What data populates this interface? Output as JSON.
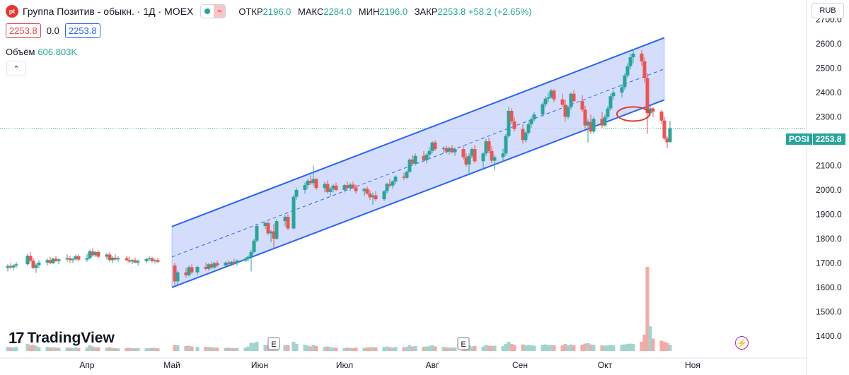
{
  "header": {
    "logo_text": "pt",
    "title": "Группа Позитив - обыкн. · 1Д · MOEX",
    "pill_icon": "≈",
    "ohlc": [
      {
        "key": "ОТКР",
        "value": "2196.0"
      },
      {
        "key": "МАКС",
        "value": "2284.0"
      },
      {
        "key": "МИН",
        "value": "2196.0"
      },
      {
        "key": "ЗАКР",
        "value": "2253.8"
      }
    ],
    "change": "+58.2 (+2.65%)",
    "bid": "2253.8",
    "spread": "0.0",
    "ask": "2253.8",
    "volume_label": "Объём",
    "volume_value": "606.803K",
    "collapse_icon": "chevron-up-icon",
    "currency": "RUB"
  },
  "brand": {
    "mark": "17",
    "name": "TradingView"
  },
  "last_price": {
    "symbol": "POSI",
    "value": "2253.8"
  },
  "colors": {
    "up": "#26a69a",
    "down": "#ef5350",
    "channel_line": "#2962ff",
    "channel_fill": "#c5d3fb",
    "volume_up": "#9ed6cf",
    "volume_down": "#f5a9a7",
    "annotation": "#e53935"
  },
  "chart_data": {
    "type": "candlestick",
    "y_ticks": [
      "2700.0",
      "2600.0",
      "2500.0",
      "2400.0",
      "2300.0",
      "2200.0",
      "2100.0",
      "2000.0",
      "1900.0",
      "1800.0",
      "1700.0",
      "1600.0",
      "1500.0",
      "1400.0"
    ],
    "y_range": [
      1310,
      2780
    ],
    "x_ticks": [
      {
        "label": "Апр",
        "date": "2024-04-01"
      },
      {
        "label": "Май",
        "date": "2024-05-01"
      },
      {
        "label": "Июн",
        "date": "2024-06-01"
      },
      {
        "label": "Июл",
        "date": "2024-07-01"
      },
      {
        "label": "Авг",
        "date": "2024-08-01"
      },
      {
        "label": "Сен",
        "date": "2024-09-01"
      },
      {
        "label": "Окт",
        "date": "2024-10-01"
      },
      {
        "label": "Ноя",
        "date": "2024-11-01"
      }
    ],
    "last_close": 2253.8,
    "channel": {
      "start": "2024-05-01",
      "end": "2024-10-22",
      "lower": [
        1600,
        2370
      ],
      "upper": [
        1850,
        2625
      ],
      "middle": [
        1725,
        2497
      ]
    },
    "events": [
      {
        "label": "E",
        "date": "2024-06-06"
      },
      {
        "label": "E",
        "date": "2024-08-12"
      }
    ],
    "annotation_circle": {
      "date": "2024-10-11",
      "value": 2312
    },
    "candles": [
      [
        "2024-03-04",
        1680,
        1695,
        1665,
        1688,
        20
      ],
      [
        "2024-03-05",
        1688,
        1700,
        1675,
        1682,
        18
      ],
      [
        "2024-03-06",
        1682,
        1695,
        1670,
        1690,
        17
      ],
      [
        "2024-03-07",
        1690,
        1705,
        1680,
        1695,
        20
      ],
      [
        "2024-03-11",
        1695,
        1740,
        1690,
        1730,
        35
      ],
      [
        "2024-03-12",
        1730,
        1745,
        1700,
        1710,
        28
      ],
      [
        "2024-03-13",
        1710,
        1720,
        1675,
        1680,
        30
      ],
      [
        "2024-03-14",
        1680,
        1700,
        1660,
        1692,
        25
      ],
      [
        "2024-03-15",
        1692,
        1712,
        1680,
        1702,
        18
      ],
      [
        "2024-03-18",
        1702,
        1720,
        1690,
        1712,
        20
      ],
      [
        "2024-03-19",
        1712,
        1725,
        1695,
        1700,
        17
      ],
      [
        "2024-03-20",
        1700,
        1722,
        1695,
        1718,
        18
      ],
      [
        "2024-03-21",
        1718,
        1730,
        1705,
        1708,
        16
      ],
      [
        "2024-03-22",
        1708,
        1720,
        1695,
        1715,
        15
      ],
      [
        "2024-03-25",
        1715,
        1735,
        1705,
        1720,
        17
      ],
      [
        "2024-03-26",
        1720,
        1730,
        1700,
        1712,
        16
      ],
      [
        "2024-03-27",
        1712,
        1722,
        1700,
        1716,
        14
      ],
      [
        "2024-03-28",
        1716,
        1735,
        1710,
        1728,
        18
      ],
      [
        "2024-03-29",
        1728,
        1735,
        1708,
        1714,
        15
      ],
      [
        "2024-04-01",
        1714,
        1738,
        1705,
        1720,
        17
      ],
      [
        "2024-04-02",
        1720,
        1755,
        1715,
        1748,
        28
      ],
      [
        "2024-04-03",
        1748,
        1760,
        1725,
        1732,
        22
      ],
      [
        "2024-04-04",
        1732,
        1750,
        1725,
        1745,
        18
      ],
      [
        "2024-04-05",
        1745,
        1752,
        1720,
        1726,
        17
      ],
      [
        "2024-04-08",
        1726,
        1742,
        1715,
        1735,
        16
      ],
      [
        "2024-04-09",
        1735,
        1745,
        1705,
        1712,
        18
      ],
      [
        "2024-04-10",
        1712,
        1728,
        1700,
        1722,
        15
      ],
      [
        "2024-04-11",
        1722,
        1735,
        1710,
        1715,
        14
      ],
      [
        "2024-04-12",
        1715,
        1728,
        1705,
        1720,
        13
      ],
      [
        "2024-04-15",
        1720,
        1730,
        1708,
        1712,
        14
      ],
      [
        "2024-04-16",
        1712,
        1725,
        1700,
        1706,
        15
      ],
      [
        "2024-04-17",
        1706,
        1718,
        1695,
        1712,
        14
      ],
      [
        "2024-04-18",
        1712,
        1722,
        1700,
        1702,
        13
      ],
      [
        "2024-04-19",
        1702,
        1715,
        1690,
        1708,
        14
      ],
      [
        "2024-04-22",
        1708,
        1722,
        1700,
        1716,
        13
      ],
      [
        "2024-04-23",
        1716,
        1728,
        1708,
        1720,
        14
      ],
      [
        "2024-04-24",
        1720,
        1725,
        1702,
        1708,
        15
      ],
      [
        "2024-04-25",
        1708,
        1718,
        1698,
        1712,
        14
      ],
      [
        "2024-04-26",
        1712,
        1722,
        1700,
        1705,
        13
      ],
      [
        "2024-05-02",
        1690,
        1700,
        1612,
        1625,
        30
      ],
      [
        "2024-05-03",
        1625,
        1670,
        1610,
        1662,
        28
      ],
      [
        "2024-05-06",
        1662,
        1680,
        1640,
        1650,
        24
      ],
      [
        "2024-05-07",
        1650,
        1690,
        1645,
        1683,
        26
      ],
      [
        "2024-05-08",
        1683,
        1695,
        1655,
        1662,
        22
      ],
      [
        "2024-05-10",
        1662,
        1690,
        1650,
        1684,
        20
      ],
      [
        "2024-05-13",
        1684,
        1702,
        1670,
        1676,
        21
      ],
      [
        "2024-05-14",
        1676,
        1700,
        1668,
        1695,
        20
      ],
      [
        "2024-05-15",
        1695,
        1705,
        1675,
        1682,
        18
      ],
      [
        "2024-05-16",
        1682,
        1705,
        1675,
        1700,
        17
      ],
      [
        "2024-05-17",
        1700,
        1710,
        1685,
        1690,
        16
      ],
      [
        "2024-05-20",
        1690,
        1708,
        1682,
        1702,
        15
      ],
      [
        "2024-05-21",
        1702,
        1712,
        1690,
        1695,
        16
      ],
      [
        "2024-05-22",
        1695,
        1710,
        1688,
        1705,
        15
      ],
      [
        "2024-05-23",
        1705,
        1718,
        1695,
        1700,
        14
      ],
      [
        "2024-05-24",
        1700,
        1715,
        1690,
        1710,
        15
      ],
      [
        "2024-05-27",
        1710,
        1725,
        1705,
        1718,
        16
      ],
      [
        "2024-05-28",
        1718,
        1732,
        1708,
        1726,
        22
      ],
      [
        "2024-05-29",
        1726,
        1755,
        1665,
        1745,
        40
      ],
      [
        "2024-05-30",
        1745,
        1800,
        1740,
        1792,
        38
      ],
      [
        "2024-05-31",
        1792,
        1860,
        1785,
        1852,
        45
      ],
      [
        "2024-06-03",
        1852,
        1870,
        1840,
        1865,
        30
      ],
      [
        "2024-06-04",
        1865,
        1870,
        1815,
        1822,
        28
      ],
      [
        "2024-06-05",
        1822,
        1835,
        1785,
        1830,
        32
      ],
      [
        "2024-06-06",
        1830,
        1860,
        1760,
        1800,
        42
      ],
      [
        "2024-06-07",
        1800,
        1880,
        1795,
        1872,
        38
      ],
      [
        "2024-06-10",
        1872,
        1898,
        1850,
        1890,
        30
      ],
      [
        "2024-06-11",
        1890,
        1900,
        1835,
        1842,
        28
      ],
      [
        "2024-06-13",
        1842,
        1980,
        1838,
        1972,
        45
      ],
      [
        "2024-06-14",
        1972,
        2010,
        1960,
        2000,
        35
      ],
      [
        "2024-06-17",
        2000,
        2030,
        1985,
        2020,
        30
      ],
      [
        "2024-06-18",
        2020,
        2045,
        2005,
        2038,
        26
      ],
      [
        "2024-06-19",
        2038,
        2060,
        2020,
        2028,
        22
      ],
      [
        "2024-06-20",
        2028,
        2100,
        2015,
        2045,
        30
      ],
      [
        "2024-06-21",
        2045,
        2050,
        2000,
        2008,
        24
      ],
      [
        "2024-06-24",
        2008,
        2035,
        1990,
        2025,
        20
      ],
      [
        "2024-06-25",
        2025,
        2040,
        1985,
        1992,
        22
      ],
      [
        "2024-06-26",
        1992,
        2012,
        1975,
        2005,
        18
      ],
      [
        "2024-06-27",
        2005,
        2025,
        1990,
        2018,
        17
      ],
      [
        "2024-06-28",
        2018,
        2030,
        1995,
        2000,
        16
      ],
      [
        "2024-07-01",
        2000,
        2025,
        1990,
        2020,
        15
      ],
      [
        "2024-07-02",
        2020,
        2035,
        2000,
        2008,
        16
      ],
      [
        "2024-07-03",
        2008,
        2030,
        1995,
        2022,
        15
      ],
      [
        "2024-07-04",
        2022,
        2035,
        2005,
        2010,
        14
      ],
      [
        "2024-07-05",
        2010,
        2022,
        1985,
        1995,
        16
      ],
      [
        "2024-07-08",
        1995,
        2010,
        1975,
        2005,
        15
      ],
      [
        "2024-07-09",
        2005,
        2015,
        1980,
        1985,
        17
      ],
      [
        "2024-07-10",
        1985,
        2000,
        1960,
        1970,
        18
      ],
      [
        "2024-07-11",
        1970,
        1990,
        1940,
        1978,
        19
      ],
      [
        "2024-07-12",
        1978,
        1995,
        1955,
        1962,
        17
      ],
      [
        "2024-07-15",
        1962,
        2000,
        1955,
        1995,
        20
      ],
      [
        "2024-07-16",
        1995,
        2030,
        1985,
        2025,
        22
      ],
      [
        "2024-07-17",
        2025,
        2045,
        2010,
        2018,
        18
      ],
      [
        "2024-07-18",
        2018,
        2040,
        2005,
        2035,
        17
      ],
      [
        "2024-07-19",
        2035,
        2060,
        2025,
        2055,
        20
      ],
      [
        "2024-07-22",
        2055,
        2070,
        2040,
        2050,
        18
      ],
      [
        "2024-07-23",
        2050,
        2080,
        2045,
        2075,
        20
      ],
      [
        "2024-07-24",
        2075,
        2130,
        2070,
        2125,
        28
      ],
      [
        "2024-07-25",
        2125,
        2145,
        2100,
        2108,
        22
      ],
      [
        "2024-07-26",
        2108,
        2150,
        2100,
        2140,
        24
      ],
      [
        "2024-07-29",
        2140,
        2160,
        2115,
        2122,
        20
      ],
      [
        "2024-07-30",
        2122,
        2150,
        2110,
        2145,
        22
      ],
      [
        "2024-07-31",
        2145,
        2175,
        2130,
        2160,
        24
      ],
      [
        "2024-08-01",
        2160,
        2200,
        2150,
        2195,
        28
      ],
      [
        "2024-08-02",
        2195,
        2205,
        2160,
        2168,
        22
      ],
      [
        "2024-08-05",
        2168,
        2180,
        2150,
        2172,
        20
      ],
      [
        "2024-08-06",
        2172,
        2182,
        2150,
        2158,
        18
      ],
      [
        "2024-08-07",
        2158,
        2178,
        2145,
        2172,
        17
      ],
      [
        "2024-08-08",
        2172,
        2185,
        2150,
        2155,
        16
      ],
      [
        "2024-08-09",
        2155,
        2175,
        2140,
        2168,
        17
      ],
      [
        "2024-08-12",
        2168,
        2180,
        2125,
        2135,
        24
      ],
      [
        "2024-08-13",
        2135,
        2150,
        2095,
        2105,
        26
      ],
      [
        "2024-08-14",
        2105,
        2150,
        2060,
        2140,
        28
      ],
      [
        "2024-08-15",
        2140,
        2175,
        2130,
        2168,
        22
      ],
      [
        "2024-08-16",
        2168,
        2185,
        2110,
        2118,
        24
      ],
      [
        "2024-08-19",
        2118,
        2155,
        2090,
        2150,
        22
      ],
      [
        "2024-08-20",
        2150,
        2210,
        2140,
        2200,
        30
      ],
      [
        "2024-08-21",
        2200,
        2215,
        2150,
        2160,
        26
      ],
      [
        "2024-08-22",
        2160,
        2180,
        2110,
        2120,
        25
      ],
      [
        "2024-08-23",
        2120,
        2145,
        2080,
        2135,
        26
      ],
      [
        "2024-08-26",
        2135,
        2170,
        2115,
        2150,
        24
      ],
      [
        "2024-08-27",
        2150,
        2230,
        2140,
        2222,
        35
      ],
      [
        "2024-08-28",
        2222,
        2340,
        2215,
        2325,
        45
      ],
      [
        "2024-08-29",
        2325,
        2335,
        2270,
        2282,
        34
      ],
      [
        "2024-08-30",
        2282,
        2300,
        2240,
        2250,
        30
      ],
      [
        "2024-09-02",
        2250,
        2270,
        2190,
        2205,
        32
      ],
      [
        "2024-09-03",
        2205,
        2240,
        2195,
        2235,
        28
      ],
      [
        "2024-09-04",
        2235,
        2280,
        2225,
        2270,
        30
      ],
      [
        "2024-09-05",
        2270,
        2300,
        2255,
        2290,
        28
      ],
      [
        "2024-09-06",
        2290,
        2320,
        2280,
        2310,
        26
      ],
      [
        "2024-09-09",
        2310,
        2360,
        2300,
        2352,
        30
      ],
      [
        "2024-09-10",
        2352,
        2385,
        2340,
        2375,
        32
      ],
      [
        "2024-09-11",
        2375,
        2400,
        2360,
        2380,
        28
      ],
      [
        "2024-09-12",
        2380,
        2415,
        2375,
        2408,
        30
      ],
      [
        "2024-09-13",
        2408,
        2415,
        2360,
        2372,
        28
      ],
      [
        "2024-09-16",
        2372,
        2395,
        2340,
        2350,
        27
      ],
      [
        "2024-09-17",
        2350,
        2370,
        2280,
        2300,
        34
      ],
      [
        "2024-09-18",
        2300,
        2345,
        2290,
        2340,
        28
      ],
      [
        "2024-09-19",
        2340,
        2400,
        2330,
        2395,
        32
      ],
      [
        "2024-09-20",
        2395,
        2410,
        2360,
        2365,
        28
      ],
      [
        "2024-09-23",
        2365,
        2390,
        2320,
        2330,
        30
      ],
      [
        "2024-09-24",
        2330,
        2345,
        2250,
        2265,
        36
      ],
      [
        "2024-09-25",
        2265,
        2290,
        2195,
        2280,
        38
      ],
      [
        "2024-09-26",
        2280,
        2310,
        2230,
        2240,
        32
      ],
      [
        "2024-09-27",
        2240,
        2300,
        2230,
        2292,
        30
      ],
      [
        "2024-09-30",
        2292,
        2320,
        2255,
        2265,
        28
      ],
      [
        "2024-10-01",
        2265,
        2310,
        2260,
        2300,
        26
      ],
      [
        "2024-10-02",
        2300,
        2345,
        2290,
        2335,
        28
      ],
      [
        "2024-10-03",
        2335,
        2395,
        2325,
        2385,
        30
      ],
      [
        "2024-10-04",
        2385,
        2410,
        2370,
        2400,
        28
      ],
      [
        "2024-10-07",
        2400,
        2435,
        2380,
        2422,
        30
      ],
      [
        "2024-10-08",
        2422,
        2480,
        2410,
        2470,
        32
      ],
      [
        "2024-10-09",
        2470,
        2520,
        2460,
        2508,
        34
      ],
      [
        "2024-10-10",
        2508,
        2560,
        2495,
        2545,
        36
      ],
      [
        "2024-10-11",
        2545,
        2580,
        2520,
        2560,
        34
      ],
      [
        "2024-10-14",
        2560,
        2575,
        2510,
        2528,
        45
      ],
      [
        "2024-10-15",
        2528,
        2545,
        2440,
        2460,
        80
      ],
      [
        "2024-10-16",
        2460,
        2480,
        2230,
        2315,
        410
      ],
      [
        "2024-10-17",
        2315,
        2345,
        2305,
        2335,
        120
      ],
      [
        "2024-10-18",
        2335,
        2340,
        2300,
        2322,
        60
      ],
      [
        "2024-10-21",
        2322,
        2330,
        2270,
        2285,
        50
      ],
      [
        "2024-10-22",
        2285,
        2300,
        2205,
        2212,
        45
      ],
      [
        "2024-10-23",
        2212,
        2220,
        2172,
        2196,
        40
      ],
      [
        "2024-10-24",
        2196,
        2284,
        2196,
        2254,
        30
      ]
    ]
  }
}
